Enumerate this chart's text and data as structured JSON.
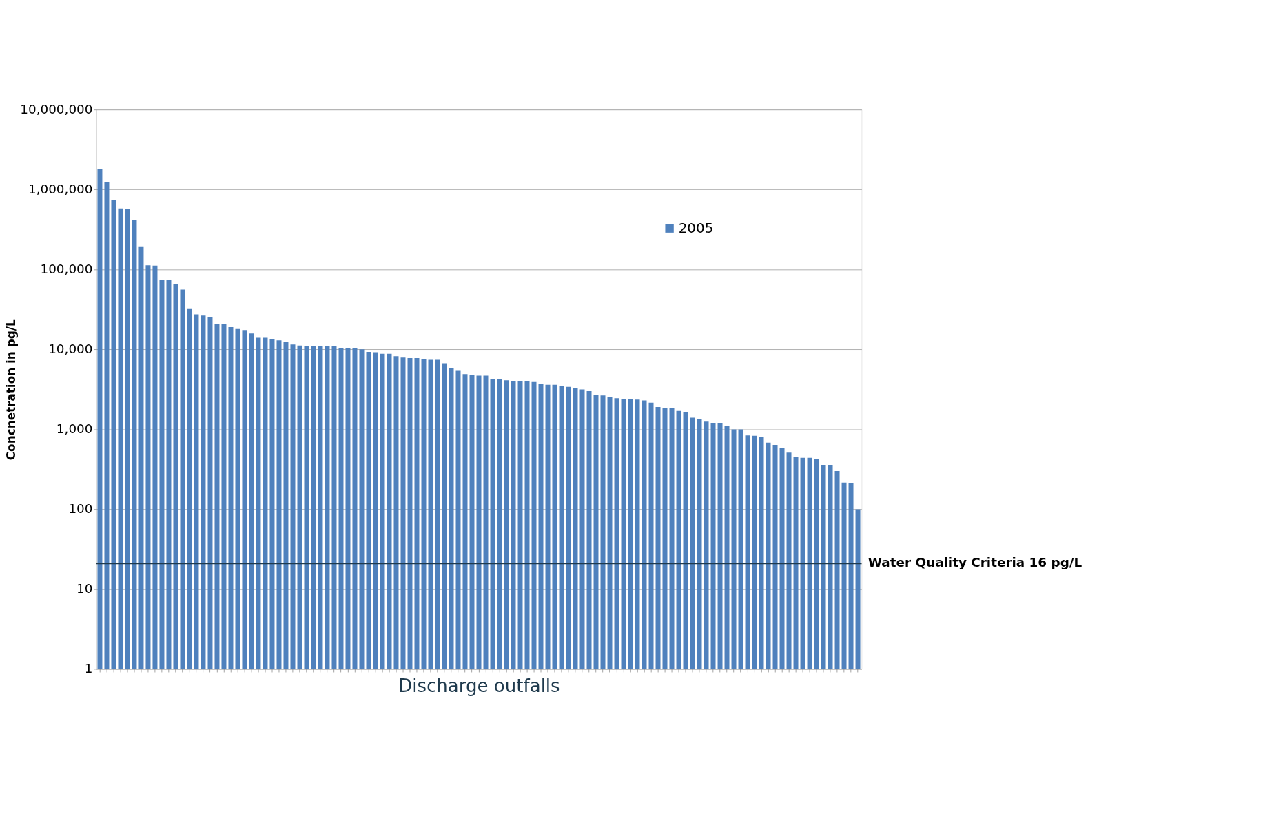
{
  "chart_data": {
    "type": "bar",
    "xlabel": "Discharge outfalls",
    "ylabel": "Concnetration in pg/L",
    "categories": [
      null,
      null,
      null,
      null,
      null,
      null,
      null,
      null,
      null,
      null,
      null,
      null,
      null,
      null,
      null,
      null,
      null,
      null,
      null,
      null,
      null,
      null,
      null,
      null,
      null,
      null,
      null,
      null,
      null,
      null,
      null,
      null,
      null,
      null,
      null,
      null,
      null,
      null,
      null,
      null,
      null,
      null,
      null,
      null,
      null,
      null,
      null,
      null,
      null,
      null,
      null,
      null,
      null,
      null,
      null,
      null,
      null,
      null,
      null,
      null,
      null,
      null,
      null,
      null,
      null,
      null,
      null,
      null,
      null,
      null,
      null,
      null,
      null,
      null,
      null,
      null,
      null,
      null,
      null,
      null,
      null,
      null,
      null,
      null,
      null,
      null,
      null,
      null,
      null,
      null,
      null,
      null,
      null,
      null,
      null,
      null,
      null,
      null,
      null,
      null,
      null,
      null,
      null,
      null,
      null,
      null,
      null,
      null,
      null,
      null,
      null
    ],
    "series": [
      {
        "name": "2005",
        "color": "#4f81bd",
        "values": [
          1800000,
          1250000,
          740000,
          580000,
          570000,
          420000,
          195000,
          113000,
          112000,
          74000,
          74000,
          66000,
          56000,
          32000,
          27500,
          26500,
          25500,
          21000,
          21000,
          19000,
          18000,
          17500,
          15800,
          14000,
          14000,
          13500,
          13000,
          12300,
          11500,
          11200,
          11100,
          11100,
          11000,
          11000,
          11000,
          10500,
          10400,
          10400,
          10000,
          9300,
          9200,
          8800,
          8800,
          8200,
          7900,
          7800,
          7800,
          7500,
          7400,
          7400,
          6700,
          5900,
          5400,
          4900,
          4800,
          4700,
          4700,
          4300,
          4200,
          4100,
          4000,
          4000,
          4000,
          3900,
          3700,
          3600,
          3600,
          3500,
          3400,
          3300,
          3150,
          3000,
          2700,
          2650,
          2550,
          2450,
          2400,
          2400,
          2350,
          2300,
          2150,
          1900,
          1850,
          1850,
          1700,
          1650,
          1400,
          1350,
          1250,
          1200,
          1180,
          1100,
          1000,
          1000,
          840,
          830,
          810,
          680,
          640,
          590,
          510,
          450,
          440,
          440,
          430,
          360,
          360,
          300,
          215,
          210,
          100
        ]
      }
    ],
    "log": true,
    "ylim": [
      1,
      10000000
    ],
    "yticks": [
      1,
      10,
      100,
      {
        "value": 1000,
        "label": "1,000"
      },
      {
        "value": 10000,
        "label": "10,000"
      },
      {
        "value": 100000,
        "label": "100,000"
      },
      {
        "value": 1000000,
        "label": "1,000,000"
      },
      {
        "value": 10000000,
        "label": "10,000,000"
      }
    ],
    "grid": "y",
    "legend": "top right",
    "ref_lines": [
      {
        "axis": "y",
        "value": 21,
        "label": "Water Quality Criteria 16 pg/L",
        "color": "#1f3a4d"
      }
    ]
  }
}
